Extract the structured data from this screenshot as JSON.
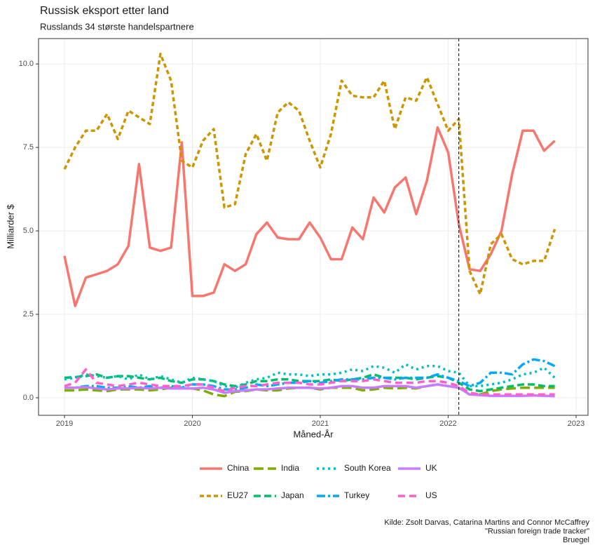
{
  "chart_data": {
    "type": "line",
    "title": "Russisk eksport etter land",
    "subtitle": "Russlands 34 største handelspartnere",
    "x_label": "Måned-År",
    "y_label": "Milliarder $",
    "caption": [
      "Kilde: Zsolt Darvas, Catarina Martins and Connor McCaffrey",
      "\"Russian foreign trade tracker\"",
      "Bruegel"
    ],
    "x": [
      2019,
      2019.083,
      2019.167,
      2019.25,
      2019.333,
      2019.417,
      2019.5,
      2019.583,
      2019.667,
      2019.75,
      2019.833,
      2019.917,
      2020,
      2020.083,
      2020.167,
      2020.25,
      2020.333,
      2020.417,
      2020.5,
      2020.583,
      2020.667,
      2020.75,
      2020.833,
      2020.917,
      2021,
      2021.083,
      2021.167,
      2021.25,
      2021.333,
      2021.417,
      2021.5,
      2021.583,
      2021.667,
      2021.75,
      2021.833,
      2021.917,
      2022,
      2022.083,
      2022.167,
      2022.25,
      2022.333,
      2022.417,
      2022.5,
      2022.583,
      2022.667,
      2022.75,
      2022.833
    ],
    "xlim": [
      2018.797,
      2023.093
    ],
    "xticks": [
      2019,
      2020,
      2021,
      2022,
      2023
    ],
    "ylim": [
      -0.525,
      10.76
    ],
    "yticks": [
      {
        "value": 0,
        "label": "0.0"
      },
      {
        "value": 2.5,
        "label": "2.5"
      },
      {
        "value": 5,
        "label": "5.0"
      },
      {
        "value": 7.5,
        "label": "7.5"
      },
      {
        "value": 10,
        "label": "10.0"
      }
    ],
    "grid": true,
    "vline": 2022.083,
    "legend": "bottom",
    "series": [
      {
        "name": "China",
        "color": "#F8766D",
        "dash": "none",
        "values": [
          4.25,
          2.75,
          3.6,
          3.7,
          3.8,
          4.0,
          4.55,
          7.0,
          4.5,
          4.4,
          4.5,
          7.65,
          3.05,
          3.05,
          3.15,
          4.0,
          3.8,
          4.0,
          4.9,
          5.25,
          4.8,
          4.75,
          4.75,
          5.25,
          4.8,
          4.15,
          4.15,
          5.1,
          4.75,
          6.0,
          5.55,
          6.3,
          6.6,
          5.5,
          6.5,
          8.1,
          7.35,
          5.2,
          3.85,
          3.8,
          4.3,
          5.0,
          6.7,
          8.0,
          8.0,
          7.4,
          7.7
        ]
      },
      {
        "name": "EU27",
        "color": "#CD9600",
        "dash": "6,4",
        "values": [
          6.85,
          7.5,
          8.0,
          8.0,
          8.5,
          7.75,
          8.6,
          8.4,
          8.2,
          10.3,
          9.5,
          7.1,
          6.9,
          7.7,
          8.05,
          5.7,
          5.8,
          7.3,
          7.9,
          7.1,
          8.55,
          8.85,
          8.6,
          7.7,
          6.9,
          7.9,
          9.5,
          9.05,
          9.0,
          9.0,
          9.5,
          8.05,
          9.0,
          8.9,
          9.6,
          8.8,
          8.0,
          8.35,
          3.8,
          3.1,
          4.6,
          4.9,
          4.15,
          4.0,
          4.1,
          4.1,
          5.05
        ]
      },
      {
        "name": "India",
        "color": "#7CAE00",
        "dash": "14,6",
        "values": [
          0.22,
          0.22,
          0.25,
          0.22,
          0.2,
          0.25,
          0.25,
          0.25,
          0.22,
          0.25,
          0.3,
          0.28,
          0.28,
          0.22,
          0.1,
          0.05,
          0.18,
          0.2,
          0.25,
          0.22,
          0.22,
          0.28,
          0.3,
          0.3,
          0.25,
          0.3,
          0.3,
          0.3,
          0.22,
          0.25,
          0.3,
          0.28,
          0.3,
          0.28,
          0.35,
          0.4,
          0.35,
          0.3,
          0.1,
          0.1,
          0.2,
          0.25,
          0.28,
          0.3,
          0.3,
          0.3,
          0.3
        ]
      },
      {
        "name": "Japan",
        "color": "#00BE67",
        "dash": "10,5",
        "values": [
          0.6,
          0.62,
          0.65,
          0.7,
          0.6,
          0.65,
          0.65,
          0.6,
          0.55,
          0.6,
          0.5,
          0.45,
          0.55,
          0.55,
          0.5,
          0.4,
          0.35,
          0.4,
          0.5,
          0.5,
          0.55,
          0.55,
          0.5,
          0.5,
          0.5,
          0.55,
          0.5,
          0.55,
          0.6,
          0.7,
          0.6,
          0.6,
          0.6,
          0.55,
          0.6,
          0.65,
          0.6,
          0.45,
          0.25,
          0.2,
          0.25,
          0.3,
          0.35,
          0.4,
          0.4,
          0.35,
          0.35
        ]
      },
      {
        "name": "South Korea",
        "color": "#00BFC4",
        "dash": "3,5",
        "values": [
          0.55,
          0.6,
          0.7,
          0.65,
          0.6,
          0.65,
          0.55,
          0.7,
          0.55,
          0.65,
          0.55,
          0.45,
          0.6,
          0.55,
          0.5,
          0.35,
          0.3,
          0.45,
          0.55,
          0.6,
          0.75,
          0.7,
          0.7,
          0.65,
          0.7,
          0.7,
          0.75,
          0.85,
          0.8,
          0.95,
          0.9,
          0.75,
          1.0,
          0.85,
          0.95,
          0.95,
          0.8,
          0.75,
          0.35,
          0.35,
          0.4,
          0.45,
          0.55,
          0.7,
          0.75,
          0.9,
          0.6
        ]
      },
      {
        "name": "Turkey",
        "color": "#00A9FF",
        "dash": "12,4,3,4",
        "values": [
          0.3,
          0.3,
          0.35,
          0.35,
          0.3,
          0.3,
          0.35,
          0.3,
          0.35,
          0.3,
          0.35,
          0.3,
          0.4,
          0.4,
          0.35,
          0.25,
          0.25,
          0.3,
          0.4,
          0.35,
          0.4,
          0.45,
          0.45,
          0.5,
          0.45,
          0.5,
          0.55,
          0.55,
          0.55,
          0.6,
          0.6,
          0.55,
          0.6,
          0.6,
          0.6,
          0.7,
          0.6,
          0.5,
          0.35,
          0.45,
          0.75,
          0.75,
          0.7,
          1.0,
          1.15,
          1.1,
          0.95
        ]
      },
      {
        "name": "UK",
        "color": "#C77CFF",
        "dash": "none",
        "values": [
          0.3,
          0.3,
          0.32,
          0.28,
          0.25,
          0.28,
          0.28,
          0.3,
          0.28,
          0.3,
          0.28,
          0.28,
          0.28,
          0.3,
          0.25,
          0.15,
          0.2,
          0.22,
          0.25,
          0.25,
          0.28,
          0.3,
          0.3,
          0.3,
          0.28,
          0.3,
          0.35,
          0.35,
          0.3,
          0.3,
          0.35,
          0.35,
          0.35,
          0.3,
          0.35,
          0.4,
          0.35,
          0.3,
          0.1,
          0.08,
          0.06,
          0.06,
          0.06,
          0.06,
          0.07,
          0.06,
          0.05
        ]
      },
      {
        "name": "US",
        "color": "#FF61CC",
        "dash": "10,6",
        "values": [
          0.35,
          0.45,
          0.85,
          0.45,
          0.4,
          0.35,
          0.4,
          0.45,
          0.4,
          0.35,
          0.35,
          0.35,
          0.4,
          0.4,
          0.3,
          0.2,
          0.3,
          0.35,
          0.35,
          0.4,
          0.45,
          0.45,
          0.45,
          0.4,
          0.4,
          0.45,
          0.5,
          0.5,
          0.5,
          0.55,
          0.5,
          0.45,
          0.45,
          0.45,
          0.5,
          0.5,
          0.45,
          0.35,
          0.15,
          0.1,
          0.1,
          0.1,
          0.1,
          0.1,
          0.1,
          0.1,
          0.1
        ]
      }
    ]
  }
}
